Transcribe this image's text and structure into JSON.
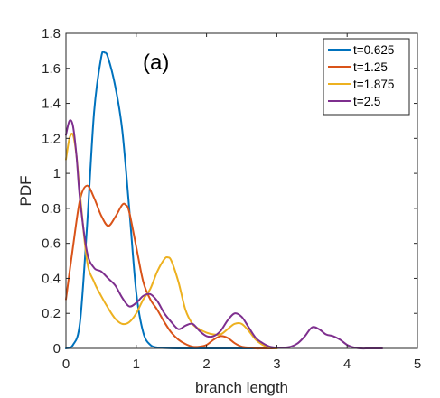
{
  "chart_data": {
    "type": "line",
    "title": "",
    "xlabel": "branch length",
    "ylabel": "PDF",
    "annotation": "(a)",
    "xlim": [
      0,
      5
    ],
    "ylim": [
      0,
      1.8
    ],
    "xticks": [
      "0",
      "1",
      "2",
      "3",
      "4",
      "5"
    ],
    "yticks": [
      "0",
      "0.2",
      "0.4",
      "0.6",
      "0.8",
      "1",
      "1.2",
      "1.4",
      "1.6",
      "1.8"
    ],
    "grid": false,
    "legend_position": "top-right",
    "series": [
      {
        "name": "t=0.625",
        "color": "#0072BD",
        "x": [
          0,
          0.1,
          0.2,
          0.3,
          0.4,
          0.5,
          0.55,
          0.6,
          0.7,
          0.8,
          0.9,
          1.0,
          1.1,
          1.2,
          1.3,
          1.4,
          1.6,
          2.0,
          2.5,
          3.0
        ],
        "y": [
          0,
          0.02,
          0.15,
          0.7,
          1.35,
          1.66,
          1.69,
          1.66,
          1.5,
          1.25,
          0.8,
          0.32,
          0.09,
          0.02,
          0.005,
          0.002,
          0,
          0,
          0,
          0
        ]
      },
      {
        "name": "t=1.25",
        "color": "#D95319",
        "x": [
          0,
          0.1,
          0.2,
          0.3,
          0.4,
          0.5,
          0.6,
          0.7,
          0.8,
          0.85,
          0.9,
          1.0,
          1.1,
          1.2,
          1.3,
          1.4,
          1.5,
          1.6,
          1.7,
          1.8,
          1.9,
          2.0,
          2.1,
          2.2,
          2.3,
          2.4,
          2.5,
          2.6,
          2.7,
          2.8,
          2.9,
          3.0
        ],
        "y": [
          0.28,
          0.58,
          0.85,
          0.93,
          0.86,
          0.76,
          0.7,
          0.75,
          0.82,
          0.82,
          0.78,
          0.58,
          0.38,
          0.28,
          0.22,
          0.15,
          0.09,
          0.05,
          0.025,
          0.01,
          0.01,
          0.02,
          0.05,
          0.07,
          0.06,
          0.03,
          0.01,
          0.005,
          0,
          0,
          0,
          0
        ]
      },
      {
        "name": "t=1.875",
        "color": "#EDB120",
        "x": [
          0,
          0.05,
          0.1,
          0.15,
          0.2,
          0.3,
          0.4,
          0.5,
          0.6,
          0.7,
          0.8,
          0.9,
          1.0,
          1.1,
          1.2,
          1.3,
          1.4,
          1.45,
          1.5,
          1.6,
          1.7,
          1.8,
          1.9,
          2.0,
          2.1,
          2.2,
          2.3,
          2.4,
          2.5,
          2.6,
          2.7,
          2.8,
          2.9,
          3.0
        ],
        "y": [
          1.08,
          1.2,
          1.22,
          1.1,
          0.88,
          0.5,
          0.38,
          0.3,
          0.23,
          0.17,
          0.14,
          0.15,
          0.2,
          0.28,
          0.34,
          0.44,
          0.51,
          0.52,
          0.5,
          0.38,
          0.22,
          0.14,
          0.11,
          0.09,
          0.08,
          0.08,
          0.11,
          0.14,
          0.14,
          0.1,
          0.05,
          0.02,
          0.005,
          0
        ]
      },
      {
        "name": "t=2.5",
        "color": "#7E2F8E",
        "x": [
          0,
          0.05,
          0.1,
          0.15,
          0.2,
          0.3,
          0.4,
          0.5,
          0.6,
          0.7,
          0.8,
          0.9,
          1.0,
          1.1,
          1.2,
          1.3,
          1.4,
          1.5,
          1.6,
          1.7,
          1.8,
          1.9,
          2.0,
          2.1,
          2.2,
          2.3,
          2.4,
          2.5,
          2.6,
          2.7,
          2.8,
          2.9,
          3.0,
          3.1,
          3.2,
          3.3,
          3.4,
          3.5,
          3.6,
          3.7,
          3.8,
          3.9,
          4.0,
          4.1,
          4.2,
          4.3,
          4.4,
          4.5
        ],
        "y": [
          1.22,
          1.3,
          1.27,
          1.1,
          0.85,
          0.55,
          0.46,
          0.44,
          0.4,
          0.36,
          0.29,
          0.24,
          0.26,
          0.3,
          0.31,
          0.27,
          0.2,
          0.15,
          0.11,
          0.13,
          0.14,
          0.1,
          0.07,
          0.07,
          0.1,
          0.16,
          0.2,
          0.18,
          0.12,
          0.06,
          0.03,
          0.01,
          0.005,
          0.005,
          0.01,
          0.03,
          0.07,
          0.12,
          0.11,
          0.08,
          0.07,
          0.05,
          0.02,
          0.005,
          0,
          0,
          0,
          0
        ]
      }
    ]
  }
}
